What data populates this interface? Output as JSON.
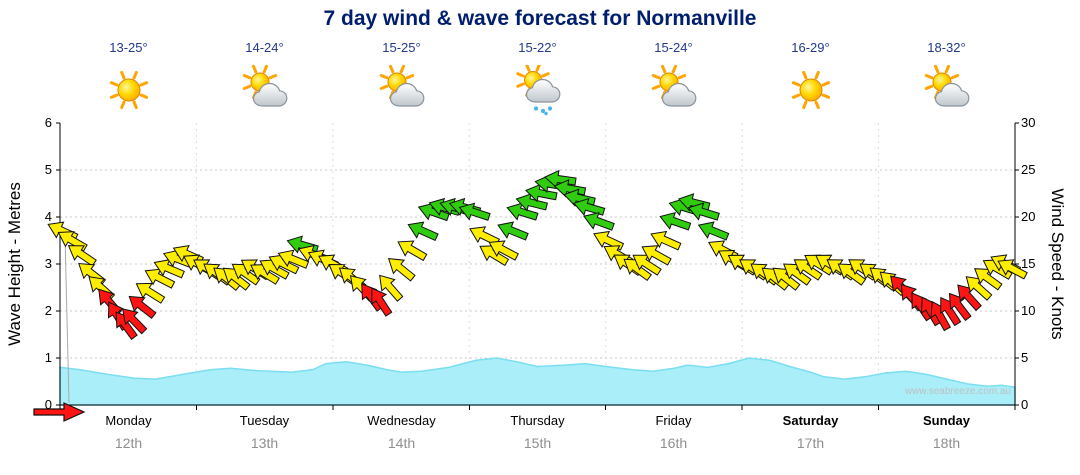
{
  "page": {
    "title": "7 day wind & wave forecast for Normanville",
    "watermark": "www.seabreeze.com.au"
  },
  "colors": {
    "arrow_yellow": "#ffee00",
    "arrow_red": "#ff1414",
    "arrow_green": "#2fcc0f",
    "arrow_outline": "#111111",
    "wave_fill": "#a9eef9",
    "wave_stroke": "#7bdef0",
    "title_text": "#001e6e",
    "temp_text": "#23388f",
    "axis_text": "#000000",
    "date_text": "#8f8f8f",
    "grid": "#c9c9c9",
    "watermark_text": "#c0c0c0"
  },
  "days": [
    {
      "name": "Monday",
      "date": "12th",
      "temp": "13-25°",
      "icon": "sunny",
      "bold": false
    },
    {
      "name": "Tuesday",
      "date": "13th",
      "temp": "14-24°",
      "icon": "partly-cloudy",
      "bold": false
    },
    {
      "name": "Wednesday",
      "date": "14th",
      "temp": "15-25°",
      "icon": "partly-cloudy",
      "bold": false
    },
    {
      "name": "Thursday",
      "date": "15th",
      "temp": "15-22°",
      "icon": "showers",
      "bold": false
    },
    {
      "name": "Friday",
      "date": "16th",
      "temp": "15-24°",
      "icon": "partly-cloudy",
      "bold": false
    },
    {
      "name": "Saturday",
      "date": "17th",
      "temp": "16-29°",
      "icon": "sunny",
      "bold": true
    },
    {
      "name": "Sunday",
      "date": "18th",
      "temp": "18-32°",
      "icon": "partly-cloudy",
      "bold": true
    }
  ],
  "axes": {
    "left_label": "Wave Height - Metres",
    "right_label": "Wind Speed - Knots",
    "left_ticks": [
      0,
      1,
      2,
      3,
      4,
      5,
      6
    ],
    "right_ticks": [
      0,
      5,
      10,
      15,
      20,
      25,
      30
    ],
    "left_max": 6,
    "right_max": 30
  },
  "chart_data": {
    "type": "area",
    "title": "7 day wind & wave forecast for Normanville",
    "x_axis": {
      "range_days": [
        0,
        7
      ],
      "day_labels": [
        "Monday 12th",
        "Tuesday 13th",
        "Wednesday 14th",
        "Thursday 15th",
        "Friday 16th",
        "Saturday 17th",
        "Sunday 18th"
      ]
    },
    "y_left": {
      "label": "Wave Height - Metres",
      "range": [
        0,
        6
      ],
      "ticks": [
        0,
        1,
        2,
        3,
        4,
        5,
        6
      ]
    },
    "y_right": {
      "label": "Wind Speed - Knots",
      "range": [
        0,
        30
      ],
      "ticks": [
        0,
        5,
        10,
        15,
        20,
        25,
        30
      ]
    },
    "grid": true,
    "wind_arrows": {
      "units": "knots",
      "encoding": "[day, knots, arrow_angle_deg_cw_from_east, color_key]",
      "colors": {
        "y": "#ffee00",
        "r": "#ff1414",
        "g": "#2fcc0f"
      },
      "points": [
        [
          0.02,
          18.5,
          205,
          "y"
        ],
        [
          0.09,
          17.5,
          210,
          "y"
        ],
        [
          0.16,
          16,
          214,
          "y"
        ],
        [
          0.23,
          14,
          218,
          "y"
        ],
        [
          0.3,
          12.5,
          222,
          "y"
        ],
        [
          0.36,
          11,
          230,
          "r"
        ],
        [
          0.42,
          9.5,
          238,
          "r"
        ],
        [
          0.48,
          8.5,
          234,
          "r"
        ],
        [
          0.54,
          9,
          226,
          "r"
        ],
        [
          0.6,
          10.5,
          218,
          "r"
        ],
        [
          0.66,
          12,
          212,
          "y"
        ],
        [
          0.73,
          13.5,
          207,
          "y"
        ],
        [
          0.8,
          14.5,
          203,
          "y"
        ],
        [
          0.87,
          15.5,
          201,
          "y"
        ],
        [
          0.94,
          16,
          204,
          "y"
        ],
        [
          1.01,
          15,
          209,
          "y"
        ],
        [
          1.08,
          14.5,
          213,
          "y"
        ],
        [
          1.15,
          14,
          216,
          "y"
        ],
        [
          1.22,
          13.5,
          219,
          "y"
        ],
        [
          1.29,
          13.5,
          218,
          "y"
        ],
        [
          1.36,
          14,
          215,
          "y"
        ],
        [
          1.43,
          14.5,
          212,
          "y"
        ],
        [
          1.5,
          14,
          211,
          "y"
        ],
        [
          1.57,
          14.5,
          209,
          "y"
        ],
        [
          1.64,
          15,
          206,
          "y"
        ],
        [
          1.71,
          15.5,
          202,
          "y"
        ],
        [
          1.78,
          17,
          196,
          "g"
        ],
        [
          1.86,
          16,
          201,
          "y"
        ],
        [
          1.93,
          15.5,
          204,
          "y"
        ],
        [
          2.0,
          15,
          209,
          "y"
        ],
        [
          2.07,
          14,
          214,
          "y"
        ],
        [
          2.14,
          13.5,
          219,
          "y"
        ],
        [
          2.21,
          12.5,
          227,
          "y"
        ],
        [
          2.28,
          11.5,
          234,
          "r"
        ],
        [
          2.35,
          11,
          237,
          "r"
        ],
        [
          2.42,
          12.5,
          229,
          "y"
        ],
        [
          2.5,
          14.5,
          219,
          "y"
        ],
        [
          2.58,
          16.5,
          210,
          "y"
        ],
        [
          2.66,
          18.5,
          204,
          "g"
        ],
        [
          2.74,
          20.5,
          199,
          "g"
        ],
        [
          2.82,
          21,
          197,
          "g"
        ],
        [
          2.9,
          21,
          196,
          "g"
        ],
        [
          2.97,
          21,
          195,
          "g"
        ],
        [
          3.04,
          20.5,
          198,
          "g"
        ],
        [
          3.11,
          18,
          206,
          "y"
        ],
        [
          3.18,
          16,
          211,
          "y"
        ],
        [
          3.25,
          16.5,
          208,
          "y"
        ],
        [
          3.32,
          18.5,
          202,
          "g"
        ],
        [
          3.39,
          20.5,
          197,
          "g"
        ],
        [
          3.46,
          21.5,
          194,
          "g"
        ],
        [
          3.53,
          22.5,
          191,
          "g"
        ],
        [
          3.6,
          23.5,
          189,
          "g"
        ],
        [
          3.67,
          24,
          188,
          "g"
        ],
        [
          3.74,
          23,
          190,
          "g"
        ],
        [
          3.81,
          22,
          193,
          "g"
        ],
        [
          3.88,
          21,
          196,
          "g"
        ],
        [
          3.95,
          19.5,
          200,
          "g"
        ],
        [
          4.02,
          17.5,
          205,
          "y"
        ],
        [
          4.09,
          16,
          210,
          "y"
        ],
        [
          4.16,
          15,
          214,
          "y"
        ],
        [
          4.23,
          14.5,
          216,
          "y"
        ],
        [
          4.3,
          15,
          213,
          "y"
        ],
        [
          4.37,
          16,
          209,
          "y"
        ],
        [
          4.44,
          17.5,
          204,
          "y"
        ],
        [
          4.51,
          19.5,
          199,
          "g"
        ],
        [
          4.58,
          21,
          196,
          "g"
        ],
        [
          4.65,
          21.5,
          194,
          "g"
        ],
        [
          4.72,
          20.5,
          197,
          "g"
        ],
        [
          4.79,
          18.5,
          202,
          "g"
        ],
        [
          4.86,
          16.5,
          208,
          "y"
        ],
        [
          4.93,
          15.5,
          211,
          "y"
        ],
        [
          5.0,
          15,
          212,
          "y"
        ],
        [
          5.08,
          14.5,
          214,
          "y"
        ],
        [
          5.16,
          14,
          216,
          "y"
        ],
        [
          5.24,
          13.5,
          218,
          "y"
        ],
        [
          5.32,
          13.5,
          218,
          "y"
        ],
        [
          5.4,
          14,
          216,
          "y"
        ],
        [
          5.48,
          14.5,
          214,
          "y"
        ],
        [
          5.56,
          15,
          212,
          "y"
        ],
        [
          5.64,
          15,
          212,
          "y"
        ],
        [
          5.72,
          14.5,
          214,
          "y"
        ],
        [
          5.8,
          14,
          216,
          "y"
        ],
        [
          5.88,
          14.5,
          214,
          "y"
        ],
        [
          5.96,
          14,
          216,
          "y"
        ],
        [
          6.03,
          13.5,
          219,
          "y"
        ],
        [
          6.1,
          13,
          222,
          "y"
        ],
        [
          6.17,
          12.5,
          226,
          "r"
        ],
        [
          6.24,
          11.5,
          231,
          "r"
        ],
        [
          6.31,
          10.5,
          236,
          "r"
        ],
        [
          6.38,
          10,
          239,
          "r"
        ],
        [
          6.45,
          9.5,
          241,
          "r"
        ],
        [
          6.52,
          10,
          237,
          "r"
        ],
        [
          6.59,
          10.5,
          233,
          "r"
        ],
        [
          6.66,
          11.5,
          228,
          "r"
        ],
        [
          6.73,
          12.5,
          222,
          "y"
        ],
        [
          6.8,
          13.5,
          216,
          "y"
        ],
        [
          6.87,
          14.5,
          210,
          "y"
        ],
        [
          6.93,
          15,
          206,
          "y"
        ],
        [
          6.98,
          14.5,
          208,
          "y"
        ]
      ]
    },
    "wave_area": {
      "units": "metres",
      "encoding": "[day, metres]",
      "points": [
        [
          0,
          0.8
        ],
        [
          0.15,
          0.75
        ],
        [
          0.35,
          0.65
        ],
        [
          0.55,
          0.57
        ],
        [
          0.7,
          0.55
        ],
        [
          0.9,
          0.65
        ],
        [
          1.1,
          0.75
        ],
        [
          1.25,
          0.78
        ],
        [
          1.45,
          0.73
        ],
        [
          1.7,
          0.7
        ],
        [
          1.85,
          0.75
        ],
        [
          1.95,
          0.88
        ],
        [
          2.1,
          0.92
        ],
        [
          2.25,
          0.85
        ],
        [
          2.4,
          0.75
        ],
        [
          2.5,
          0.7
        ],
        [
          2.65,
          0.72
        ],
        [
          2.85,
          0.8
        ],
        [
          3.05,
          0.95
        ],
        [
          3.2,
          1.0
        ],
        [
          3.35,
          0.92
        ],
        [
          3.5,
          0.82
        ],
        [
          3.7,
          0.85
        ],
        [
          3.85,
          0.88
        ],
        [
          4.0,
          0.82
        ],
        [
          4.2,
          0.75
        ],
        [
          4.35,
          0.72
        ],
        [
          4.5,
          0.78
        ],
        [
          4.6,
          0.85
        ],
        [
          4.75,
          0.8
        ],
        [
          4.9,
          0.88
        ],
        [
          5.05,
          1.0
        ],
        [
          5.2,
          0.95
        ],
        [
          5.35,
          0.82
        ],
        [
          5.5,
          0.7
        ],
        [
          5.6,
          0.6
        ],
        [
          5.75,
          0.55
        ],
        [
          5.9,
          0.6
        ],
        [
          6.05,
          0.68
        ],
        [
          6.2,
          0.72
        ],
        [
          6.35,
          0.65
        ],
        [
          6.5,
          0.55
        ],
        [
          6.65,
          0.45
        ],
        [
          6.8,
          0.4
        ],
        [
          6.9,
          0.42
        ],
        [
          7.0,
          0.38
        ]
      ]
    },
    "current_wind_arrow": {
      "knots": 1,
      "angle_deg": 0,
      "color": "r"
    }
  }
}
